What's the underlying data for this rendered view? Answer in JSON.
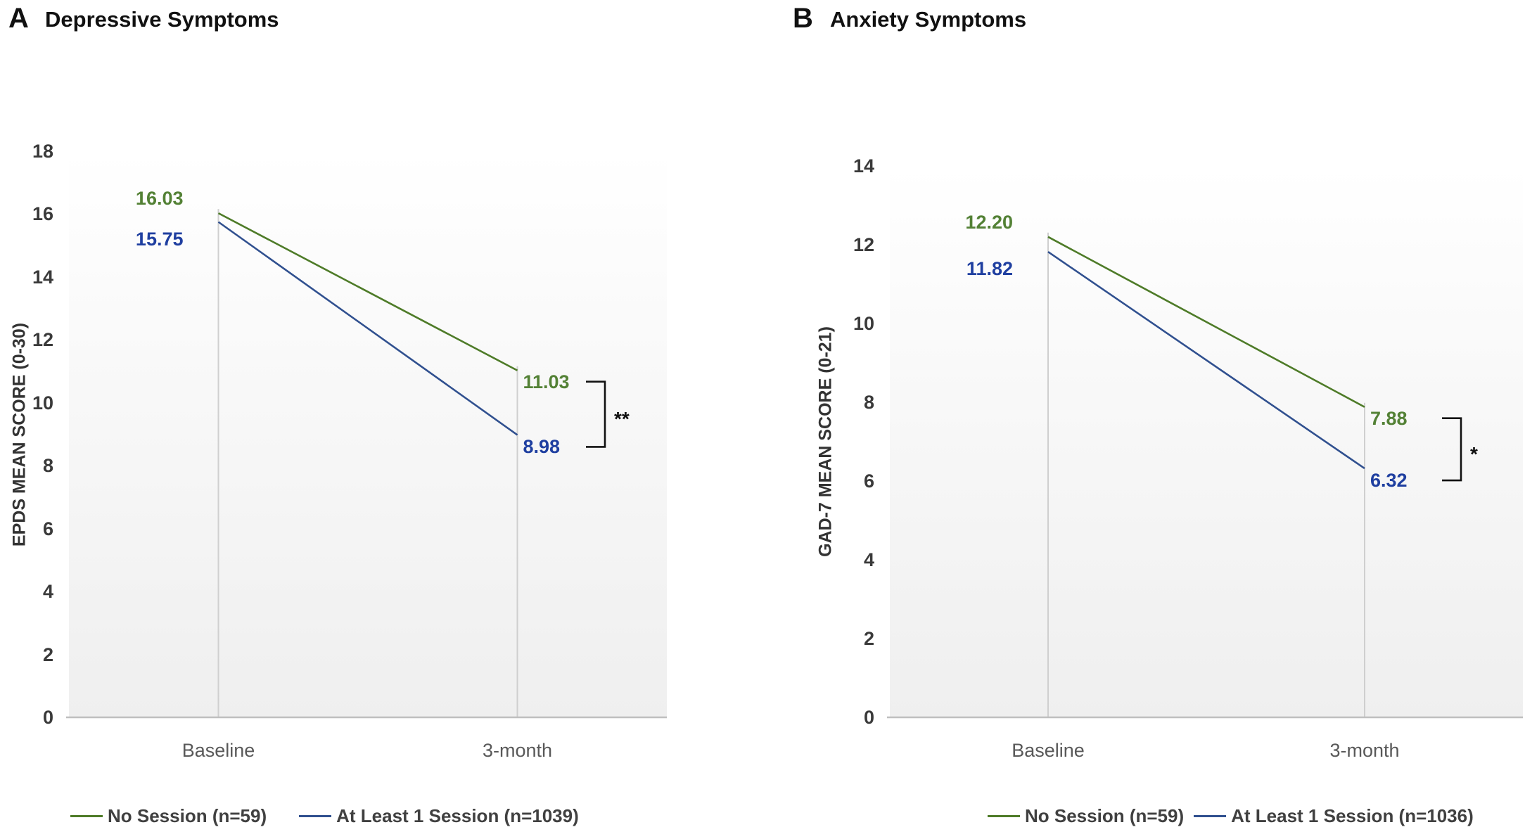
{
  "figure_type": "two-panel-slopegraph",
  "chart_data": [
    {
      "type": "line",
      "panel_letter": "A",
      "title": "Depressive Symptoms",
      "xlabel": "",
      "ylabel": "EPDS MEAN SCORE (0-30)",
      "x_categories": [
        "Baseline",
        "3-month"
      ],
      "ylim": [
        0,
        18
      ],
      "ytick_step": 2,
      "ytick_labels": [
        "18",
        "16",
        "14",
        "12",
        "10",
        "8",
        "6",
        "4",
        "2",
        "0"
      ],
      "grid": "category-drop-lines",
      "legend_position": "bottom",
      "series": [
        {
          "name": "No Session (n=59)",
          "color": "#4e7b28",
          "label_color": "#538135",
          "values": [
            16.03,
            11.03
          ],
          "value_labels": [
            "16.03",
            "11.03"
          ]
        },
        {
          "name": "At Least 1 Session (n=1039)",
          "color": "#30508f",
          "label_color": "#1f3fa0",
          "values": [
            15.75,
            8.98
          ],
          "value_labels": [
            "15.75",
            "8.98"
          ]
        }
      ],
      "significance_marker": "**"
    },
    {
      "type": "line",
      "panel_letter": "B",
      "title": "Anxiety Symptoms",
      "xlabel": "",
      "ylabel": "GAD-7 MEAN SCORE (0-21)",
      "x_categories": [
        "Baseline",
        "3-month"
      ],
      "ylim": [
        0,
        14
      ],
      "ytick_step": 2,
      "ytick_labels": [
        "14",
        "12",
        "10",
        "8",
        "6",
        "4",
        "2",
        "0"
      ],
      "grid": "category-drop-lines",
      "legend_position": "bottom",
      "series": [
        {
          "name": "No Session (n=59)",
          "color": "#4e7b28",
          "label_color": "#538135",
          "values": [
            12.2,
            7.88
          ],
          "value_labels": [
            "12.20",
            "7.88"
          ]
        },
        {
          "name": "At Least 1 Session (n=1036)",
          "color": "#30508f",
          "label_color": "#1f3fa0",
          "values": [
            11.82,
            6.32
          ],
          "value_labels": [
            "11.82",
            "6.32"
          ]
        }
      ],
      "significance_marker": "*"
    }
  ]
}
